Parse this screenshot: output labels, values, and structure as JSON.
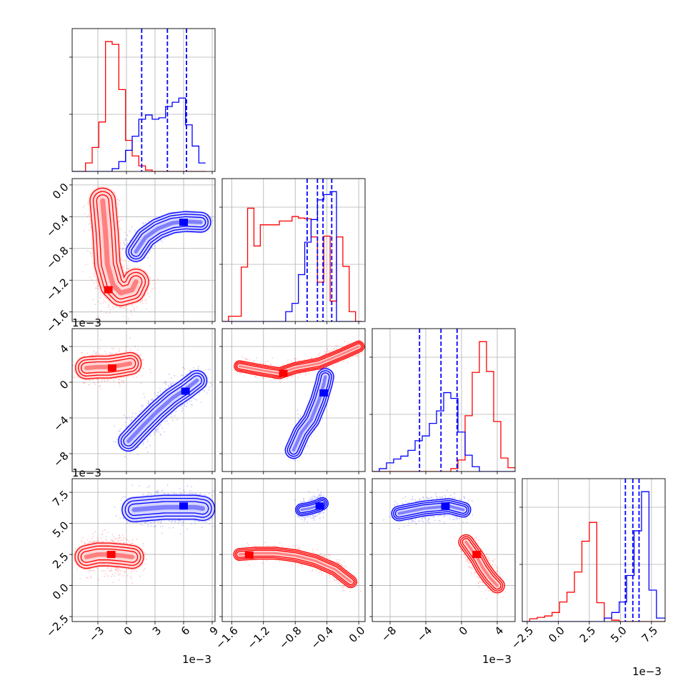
{
  "chart_data": {
    "type": "corner",
    "grid": true,
    "n_params": 4,
    "series": [
      {
        "color": "#ff0000"
      },
      {
        "color": "#0000ff"
      }
    ],
    "params": [
      {
        "range": [
          -5.7,
          9.3
        ],
        "ticks": [
          "-3",
          "0",
          "3",
          "6",
          "9"
        ],
        "tick_values": [
          -3,
          0,
          3,
          6,
          9
        ],
        "offset": "1e−3",
        "tick_rotation": 45
      },
      {
        "range": [
          -1.72,
          0.08
        ],
        "ticks": [
          "0.0",
          "-0.4",
          "-0.8",
          "-1.2",
          "-1.6"
        ],
        "tick_values": [
          0.0,
          -0.4,
          -0.8,
          -1.2,
          -1.6
        ],
        "offset": "1e−3",
        "tick_rotation": 45
      },
      {
        "range": [
          -10.0,
          6.0
        ],
        "ticks": [
          "4",
          "0",
          "-4",
          "-8"
        ],
        "tick_values": [
          4,
          0,
          -4,
          -8
        ],
        "offset": "1e−3",
        "tick_rotation": 45
      },
      {
        "range": [
          -2.9,
          8.6
        ],
        "ticks": [
          "7.5",
          "5.0",
          "2.5",
          "0.0",
          "-2.5"
        ],
        "tick_values": [
          7.5,
          5.0,
          2.5,
          0.0,
          -2.5
        ],
        "offset": "1e−3",
        "tick_rotation": 45
      }
    ],
    "histograms": [
      {
        "param": 0,
        "red": {
          "bin_edges": [
            -5.7,
            -5.0,
            -4.3,
            -3.6,
            -2.9,
            -2.2,
            -1.5,
            -0.8,
            -0.1,
            0.6,
            1.3,
            2.0,
            2.7,
            3.4,
            4.1,
            4.8,
            5.5,
            6.2,
            6.9,
            7.6,
            8.3
          ],
          "counts": [
            0,
            0,
            6,
            17,
            35,
            92,
            90,
            58,
            22,
            11,
            4,
            1,
            0,
            0,
            0,
            0,
            0,
            0,
            0,
            0
          ]
        },
        "blue": {
          "bin_edges": [
            -5.7,
            -5.0,
            -4.3,
            -3.6,
            -2.9,
            -2.2,
            -1.5,
            -0.8,
            -0.1,
            0.6,
            1.3,
            2.0,
            2.7,
            3.4,
            4.1,
            4.8,
            5.5,
            6.2,
            6.9,
            7.6,
            8.3
          ],
          "counts": [
            0,
            0,
            0,
            0,
            0,
            0,
            2,
            7,
            15,
            25,
            37,
            40,
            37,
            38,
            46,
            49,
            52,
            33,
            18,
            6
          ]
        },
        "blue_quantile_lines": [
          1.6,
          4.3,
          6.3
        ]
      },
      {
        "param": 1,
        "red": {
          "bin_edges": [
            -1.72,
            -1.64,
            -1.56,
            -1.48,
            -1.4,
            -1.32,
            -1.24,
            -1.16,
            -1.08,
            -1.0,
            -0.92,
            -0.84,
            -0.76,
            -0.68,
            -0.6,
            -0.52,
            -0.44,
            -0.36,
            -0.28,
            -0.2,
            -0.12,
            -0.04,
            0.04
          ],
          "counts": [
            0,
            7,
            7,
            72,
            150,
            100,
            128,
            128,
            128,
            133,
            133,
            139,
            137,
            136,
            112,
            52,
            113,
            27,
            112,
            73,
            13,
            0
          ]
        },
        "blue": {
          "bin_edges": [
            -1.72,
            -1.64,
            -1.56,
            -1.48,
            -1.4,
            -1.32,
            -1.24,
            -1.16,
            -1.08,
            -1.0,
            -0.92,
            -0.84,
            -0.76,
            -0.68,
            -0.6,
            -0.52,
            -0.44,
            -0.36,
            -0.28,
            -0.2,
            -0.12,
            -0.04,
            0.04
          ],
          "counts": [
            0,
            0,
            0,
            0,
            0,
            0,
            0,
            0,
            0,
            0,
            13,
            24,
            62,
            105,
            135,
            161,
            168,
            172,
            0,
            0,
            0,
            0
          ]
        },
        "blue_quantile_lines": [
          -0.65,
          -0.52,
          -0.45,
          -0.34
        ]
      },
      {
        "param": 2,
        "red": {
          "bin_edges": [
            -10,
            -9.2,
            -8.4,
            -7.6,
            -6.8,
            -6.0,
            -5.2,
            -4.4,
            -3.6,
            -2.8,
            -2.0,
            -1.2,
            -0.4,
            0.4,
            1.2,
            2.0,
            2.8,
            3.6,
            4.4,
            5.2,
            6.0
          ],
          "counts": [
            0,
            0,
            0,
            0,
            0,
            0,
            0,
            0,
            0,
            0,
            0,
            3,
            12,
            58,
            103,
            135,
            104,
            52,
            14,
            4
          ]
        },
        "blue": {
          "bin_edges": [
            -10,
            -9.2,
            -8.4,
            -7.6,
            -6.8,
            -6.0,
            -5.2,
            -4.4,
            -3.6,
            -2.8,
            -2.0,
            -1.2,
            -0.4,
            0.4,
            1.2,
            2.0,
            2.8,
            3.6,
            4.4,
            5.2,
            6.0
          ],
          "counts": [
            0,
            3,
            9,
            13,
            16,
            22,
            32,
            37,
            50,
            63,
            82,
            76,
            41,
            17,
            5,
            0,
            0,
            0,
            0,
            0
          ]
        },
        "blue_quantile_lines": [
          -4.7,
          -2.3,
          -0.5
        ]
      },
      {
        "param": 3,
        "red": {
          "bin_edges": [
            -2.9,
            -2.3,
            -1.7,
            -1.1,
            -0.5,
            0.1,
            0.7,
            1.3,
            1.9,
            2.5,
            3.1,
            3.7,
            4.3,
            4.9,
            5.5,
            6.1,
            6.7,
            7.3,
            7.9,
            8.6
          ],
          "counts": [
            0,
            4,
            6,
            8,
            13,
            28,
            42,
            71,
            115,
            142,
            27,
            5,
            2,
            0,
            0,
            0,
            0,
            0,
            0
          ]
        },
        "blue": {
          "bin_edges": [
            -2.9,
            -2.3,
            -1.7,
            -1.1,
            -0.5,
            0.1,
            0.7,
            1.3,
            1.9,
            2.5,
            3.1,
            3.7,
            4.3,
            4.9,
            5.5,
            6.1,
            6.7,
            7.3,
            7.9,
            8.6
          ],
          "counts": [
            0,
            0,
            0,
            0,
            0,
            0,
            0,
            0,
            0,
            0,
            0,
            5,
            13,
            28,
            66,
            130,
            186,
            45,
            5
          ]
        },
        "blue_quantile_lines": [
          5.4,
          6.0,
          6.5
        ]
      }
    ],
    "pairs": [
      {
        "row": 1,
        "col": 0,
        "red": {
          "path": [
            [
              -2.5,
              -0.2
            ],
            [
              -2.2,
              -0.6
            ],
            [
              -2.0,
              -1.0
            ],
            [
              -1.4,
              -1.26
            ],
            [
              -0.6,
              -1.36
            ],
            [
              0.6,
              -1.32
            ],
            [
              1.0,
              -1.22
            ]
          ],
          "mode": [
            -1.9,
            -1.32
          ],
          "spread": [
            1.1,
            0.14
          ]
        },
        "blue": {
          "path": [
            [
              1.0,
              -0.84
            ],
            [
              2.0,
              -0.66
            ],
            [
              3.3,
              -0.55
            ],
            [
              4.8,
              -0.48
            ],
            [
              6.2,
              -0.46
            ],
            [
              7.8,
              -0.47
            ]
          ],
          "mode": [
            6.0,
            -0.47
          ],
          "spread": [
            0.9,
            0.05
          ]
        }
      },
      {
        "row": 2,
        "col": 0,
        "red": {
          "path": [
            [
              -4.2,
              1.6
            ],
            [
              -3.0,
              1.7
            ],
            [
              -1.8,
              1.7
            ],
            [
              -0.6,
              1.9
            ],
            [
              0.4,
              2.1
            ]
          ],
          "mode": [
            -1.5,
            1.6
          ],
          "spread": [
            1.0,
            0.9
          ]
        },
        "blue": {
          "path": [
            [
              0.2,
              -6.6
            ],
            [
              1.8,
              -4.8
            ],
            [
              3.2,
              -3.3
            ],
            [
              4.8,
              -1.8
            ],
            [
              6.2,
              -0.8
            ],
            [
              7.4,
              0.2
            ]
          ],
          "mode": [
            6.2,
            -1.0
          ],
          "spread": [
            0.9,
            0.9
          ]
        }
      },
      {
        "row": 3,
        "col": 0,
        "red": {
          "path": [
            [
              -4.2,
              2.3
            ],
            [
              -3.0,
              2.5
            ],
            [
              -1.8,
              2.5
            ],
            [
              -0.4,
              2.4
            ],
            [
              0.6,
              2.3
            ]
          ],
          "mode": [
            -1.6,
            2.5
          ],
          "spread": [
            0.9,
            0.8
          ]
        },
        "blue": {
          "path": [
            [
              0.8,
              6.1
            ],
            [
              2.4,
              6.2
            ],
            [
              4.0,
              6.3
            ],
            [
              5.6,
              6.3
            ],
            [
              7.2,
              6.3
            ],
            [
              8.0,
              6.2
            ]
          ],
          "mode": [
            6.0,
            6.4
          ],
          "spread": [
            1.1,
            0.7
          ]
        }
      },
      {
        "row": 2,
        "col": 1,
        "red": {
          "path": [
            [
              -1.5,
              1.8
            ],
            [
              -1.2,
              1.3
            ],
            [
              -1.0,
              1.0
            ],
            [
              -0.8,
              1.6
            ],
            [
              -0.5,
              2.1
            ],
            [
              -0.2,
              3.2
            ],
            [
              0.0,
              4.0
            ]
          ],
          "mode": [
            -0.95,
            1.0
          ],
          "spread": [
            0.04,
            0.5
          ]
        },
        "blue": {
          "path": [
            [
              -0.82,
              -7.6
            ],
            [
              -0.72,
              -5.6
            ],
            [
              -0.6,
              -4.2
            ],
            [
              -0.5,
              -2.0
            ],
            [
              -0.44,
              -0.2
            ],
            [
              -0.42,
              0.6
            ]
          ],
          "mode": [
            -0.44,
            -1.2
          ],
          "spread": [
            0.03,
            0.8
          ]
        }
      },
      {
        "row": 3,
        "col": 1,
        "red": {
          "path": [
            [
              -1.5,
              2.5
            ],
            [
              -1.3,
              2.6
            ],
            [
              -1.05,
              2.6
            ],
            [
              -0.8,
              2.4
            ],
            [
              -0.55,
              2.0
            ],
            [
              -0.3,
              1.3
            ],
            [
              -0.1,
              0.3
            ]
          ],
          "mode": [
            -1.38,
            2.45
          ],
          "spread": [
            0.05,
            0.4
          ]
        },
        "blue": {
          "path": [
            [
              -0.72,
              6.1
            ],
            [
              -0.62,
              6.2
            ],
            [
              -0.52,
              6.4
            ],
            [
              -0.46,
              6.6
            ]
          ],
          "mode": [
            -0.49,
            6.4
          ],
          "spread": [
            0.03,
            0.4
          ]
        }
      },
      {
        "row": 3,
        "col": 2,
        "red": {
          "path": [
            [
              0.5,
              3.5
            ],
            [
              1.2,
              2.8
            ],
            [
              1.8,
              2.2
            ],
            [
              2.4,
              1.4
            ],
            [
              3.2,
              0.6
            ],
            [
              4.0,
              0.0
            ]
          ],
          "mode": [
            1.7,
            2.5
          ],
          "spread": [
            0.5,
            0.5
          ]
        },
        "blue": {
          "path": [
            [
              -7.0,
              5.8
            ],
            [
              -5.6,
              6.0
            ],
            [
              -4.2,
              6.2
            ],
            [
              -2.8,
              6.3
            ],
            [
              -1.4,
              6.4
            ],
            [
              0.2,
              6.1
            ]
          ],
          "mode": [
            -1.8,
            6.4
          ],
          "spread": [
            0.7,
            0.5
          ]
        }
      }
    ]
  }
}
